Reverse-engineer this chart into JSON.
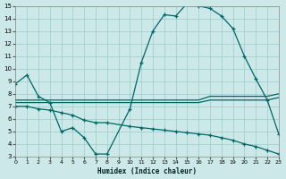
{
  "bg_color": "#cce8e8",
  "grid_color": "#99cccc",
  "line_color": "#006666",
  "xlabel": "Humidex (Indice chaleur)",
  "xlim": [
    0,
    23
  ],
  "ylim": [
    3,
    15
  ],
  "xticks": [
    0,
    1,
    2,
    3,
    4,
    5,
    6,
    7,
    8,
    9,
    10,
    11,
    12,
    13,
    14,
    15,
    16,
    17,
    18,
    19,
    20,
    21,
    22,
    23
  ],
  "yticks": [
    3,
    4,
    5,
    6,
    7,
    8,
    9,
    10,
    11,
    12,
    13,
    14,
    15
  ],
  "line1_x": [
    0,
    1,
    2,
    3,
    4,
    5,
    6,
    7,
    8,
    10,
    11,
    12,
    13,
    14,
    15,
    16,
    17,
    18,
    19,
    20,
    21,
    22,
    23
  ],
  "line1_y": [
    8.8,
    9.5,
    7.8,
    7.3,
    5.0,
    5.3,
    4.5,
    3.2,
    3.2,
    6.8,
    10.5,
    13.0,
    14.3,
    14.2,
    15.2,
    15.0,
    14.8,
    14.2,
    13.2,
    11.0,
    9.2,
    7.5,
    4.8
  ],
  "line2_x": [
    0,
    1,
    2,
    3,
    4,
    5,
    6,
    7,
    8,
    9,
    10,
    11,
    12,
    13,
    14,
    15,
    16,
    17,
    18,
    19,
    20,
    21,
    22,
    23
  ],
  "line2_y": [
    7.5,
    7.5,
    7.5,
    7.5,
    7.5,
    7.5,
    7.5,
    7.5,
    7.5,
    7.5,
    7.5,
    7.5,
    7.5,
    7.5,
    7.5,
    7.5,
    7.5,
    7.8,
    7.8,
    7.8,
    7.8,
    7.8,
    7.8,
    8.0
  ],
  "line3_x": [
    0,
    1,
    2,
    3,
    4,
    5,
    6,
    7,
    8,
    9,
    10,
    11,
    12,
    13,
    14,
    15,
    16,
    17,
    18,
    19,
    20,
    21,
    22,
    23
  ],
  "line3_y": [
    7.3,
    7.3,
    7.3,
    7.3,
    7.3,
    7.3,
    7.3,
    7.3,
    7.3,
    7.3,
    7.3,
    7.3,
    7.3,
    7.3,
    7.3,
    7.3,
    7.3,
    7.5,
    7.5,
    7.5,
    7.5,
    7.5,
    7.5,
    7.7
  ],
  "line4_x": [
    0,
    1,
    2,
    3,
    4,
    5,
    6,
    7,
    8,
    10,
    11,
    12,
    13,
    14,
    15,
    16,
    17,
    18,
    19,
    20,
    21,
    22,
    23
  ],
  "line4_y": [
    7.0,
    7.0,
    6.8,
    6.7,
    6.5,
    6.3,
    5.9,
    5.7,
    5.7,
    5.4,
    5.3,
    5.2,
    5.1,
    5.0,
    4.9,
    4.8,
    4.7,
    4.5,
    4.3,
    4.0,
    3.8,
    3.5,
    3.2
  ]
}
